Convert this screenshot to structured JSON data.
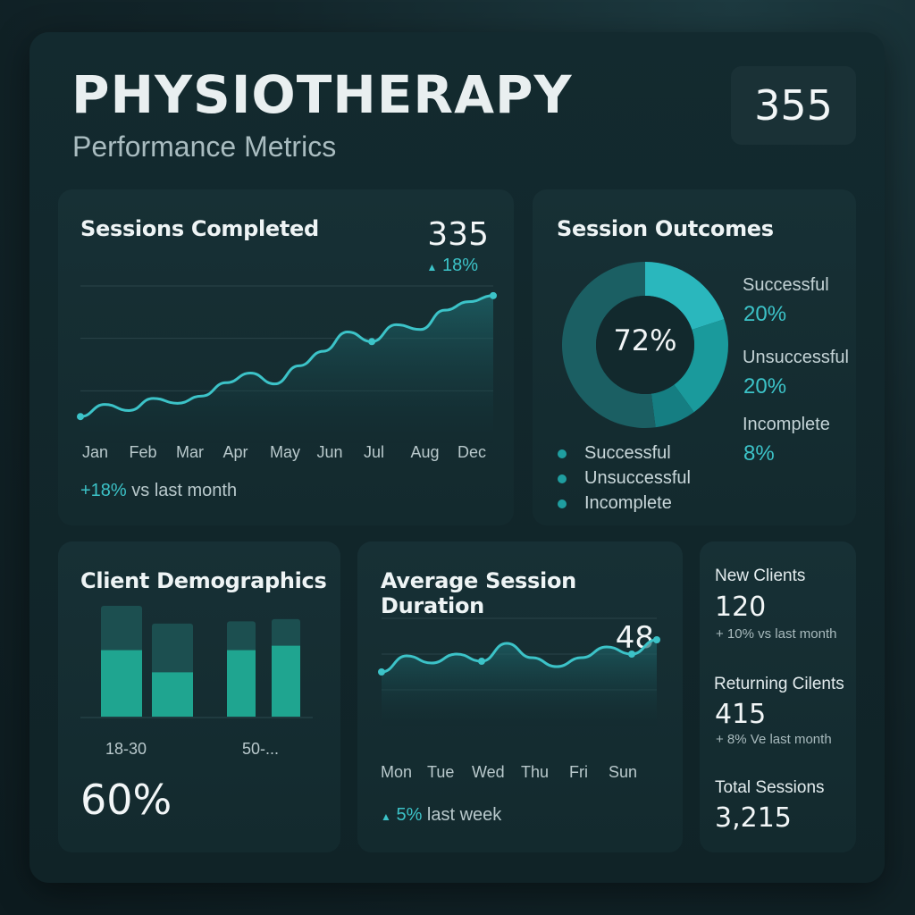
{
  "header": {
    "title": "PHYSIOTHERAPY",
    "subtitle": "Performance Metrics",
    "total_badge": "355"
  },
  "colors": {
    "accent": "#3cc3c8",
    "teal_dark": "#1a6468",
    "background": "#0d1b1f"
  },
  "sessions_completed": {
    "title": "Sessions Completed",
    "value": "335",
    "change": "18%",
    "footer_change": "+18%",
    "footer_text": "vs last month",
    "months": [
      "Jan",
      "Feb",
      "Mar",
      "Apr",
      "May",
      "Jun",
      "Jul",
      "Aug",
      "Dec"
    ]
  },
  "session_outcomes": {
    "title": "Session Outcomes",
    "center_value": "72%",
    "side": [
      {
        "label": "Successful",
        "value": "20%"
      },
      {
        "label": "Unsuccessful",
        "value": "20%"
      },
      {
        "label": "Incomplete",
        "value": "8%"
      }
    ],
    "legend": [
      "Successful",
      "Unsuccessful",
      "Incomplete"
    ]
  },
  "client_demographics": {
    "title": "Client Demographics",
    "tick_labels": [
      "18-30",
      "50-..."
    ],
    "big_value": "60%"
  },
  "avg_duration": {
    "title": "Average Session Duration",
    "value": "48",
    "days": [
      "Mon",
      "Tue",
      "Wed",
      "Thu",
      "Fri",
      "Sun"
    ],
    "footer_change": "5%",
    "footer_text": "last week"
  },
  "stats": {
    "new_clients_label": "New Clients",
    "new_clients_value": "120",
    "new_clients_sub": "+ 10% vs last month",
    "returning_label": "Returning Cilents",
    "returning_value": "415",
    "returning_sub": "+ 8% Ve last month",
    "total_label": "Total Sessions",
    "total_value": "3,215"
  },
  "chart_data": [
    {
      "type": "area",
      "title": "Sessions Completed",
      "x": [
        "Jan",
        "",
        "Feb",
        "",
        "Mar",
        "",
        "Apr",
        "",
        "May",
        "",
        "Jun",
        "",
        "Jul",
        "",
        "Aug",
        "",
        "Dec",
        ""
      ],
      "values": [
        22,
        32,
        27,
        37,
        33,
        39,
        50,
        58,
        49,
        64,
        76,
        92,
        84,
        98,
        94,
        110,
        117,
        122
      ],
      "ylim": [
        0,
        130
      ],
      "grid": true
    },
    {
      "type": "pie",
      "title": "Session Outcomes",
      "center_label": "72%",
      "slices": [
        {
          "label": "Successful",
          "value": 20
        },
        {
          "label": "Unsuccessful",
          "value": 20
        },
        {
          "label": "Incomplete",
          "value": 8
        },
        {
          "label": "",
          "value": 52
        }
      ]
    },
    {
      "type": "bar",
      "title": "Client Demographics",
      "categories": [
        "18-30",
        "",
        "",
        "50-..."
      ],
      "series": [
        {
          "values": [
            60,
            40,
            60,
            64
          ]
        },
        {
          "values": [
            100,
            84,
            86,
            88
          ]
        }
      ],
      "ylim": [
        0,
        100
      ]
    },
    {
      "type": "area",
      "title": "Average Session Duration",
      "x": [
        "Mon",
        "",
        "Tue",
        "",
        "Wed",
        "",
        "Thu",
        "",
        "Fri",
        "",
        "Sun",
        ""
      ],
      "values": [
        30,
        39,
        35,
        40,
        36,
        46,
        38,
        33,
        38,
        44,
        40,
        48
      ],
      "ylim": [
        0,
        60
      ],
      "grid": true
    }
  ]
}
